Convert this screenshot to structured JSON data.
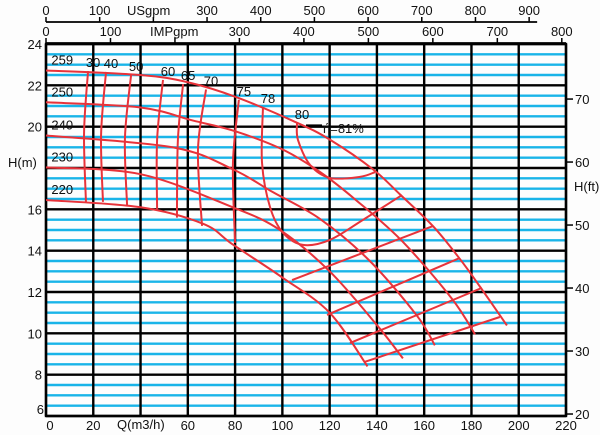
{
  "chart_data": {
    "type": "line",
    "title": "",
    "xlabel": "Q(m3/h)",
    "ylabel": "H(m)",
    "ylabel_right": "H(ft)",
    "xlim": [
      0,
      220
    ],
    "ylim": [
      6,
      24
    ],
    "grid": true,
    "x_tick_labels": [
      "0",
      "20",
      "",
      "60",
      "80",
      "100",
      "120",
      "140",
      "160",
      "180",
      "200",
      "220"
    ],
    "y_tick_labels": [
      "6",
      "8",
      "10",
      "12",
      "14",
      "16",
      "",
      "20",
      "22",
      "24"
    ],
    "right_axis_ticks_ft": [
      20,
      30,
      40,
      50,
      60,
      70
    ],
    "top_axes": [
      {
        "label": "USgpm",
        "per_m3h": 4.403,
        "ticks": [
          0,
          100,
          200,
          300,
          400,
          500,
          600,
          700,
          800,
          900
        ],
        "tick_labels": [
          "0",
          "100",
          "",
          "300",
          "400",
          "500",
          "600",
          "700",
          "800",
          "900"
        ]
      },
      {
        "label": "IMPgpm",
        "per_m3h": 3.666,
        "ticks": [
          0,
          100,
          200,
          300,
          400,
          500,
          600,
          700,
          800
        ],
        "tick_labels": [
          "0",
          "100",
          "",
          "300",
          "400",
          "500",
          "600",
          "700",
          "800"
        ]
      }
    ],
    "series": [
      {
        "name": "259",
        "points": [
          [
            0,
            22.72
          ],
          [
            40,
            22.5
          ],
          [
            60,
            22.15
          ],
          [
            80,
            21.45
          ],
          [
            106,
            20.2
          ],
          [
            120,
            19.38
          ],
          [
            138.3,
            17.94
          ],
          [
            149.7,
            16.73
          ],
          [
            163.7,
            15.19
          ],
          [
            175.1,
            13.6
          ],
          [
            183.6,
            12.26
          ],
          [
            195,
            10.38
          ]
        ]
      },
      {
        "name": "250",
        "points": [
          [
            0,
            21.18
          ],
          [
            40,
            20.93
          ],
          [
            62,
            20.3
          ],
          [
            80,
            19.78
          ],
          [
            100,
            18.9
          ],
          [
            116,
            17.8
          ],
          [
            130.7,
            16.49
          ],
          [
            150.6,
            14.47
          ],
          [
            171.7,
            11.68
          ],
          [
            181.5,
            9.95
          ]
        ]
      },
      {
        "name": "240",
        "points": [
          [
            0,
            19.57
          ],
          [
            53.7,
            19.0
          ],
          [
            79,
            17.94
          ],
          [
            96,
            16.83
          ],
          [
            116,
            15.53
          ],
          [
            137,
            13.5
          ],
          [
            156.9,
            10.86
          ],
          [
            164.5,
            9.42
          ]
        ]
      },
      {
        "name": "230",
        "points": [
          [
            0,
            18.03
          ],
          [
            40,
            17.7
          ],
          [
            79,
            16.1
          ],
          [
            99,
            15.0
          ],
          [
            120,
            13.0
          ],
          [
            140,
            10.4
          ],
          [
            151,
            8.79
          ]
        ]
      },
      {
        "name": "220",
        "points": [
          [
            0,
            16.45
          ],
          [
            40,
            16.1
          ],
          [
            66.5,
            15.3
          ],
          [
            79,
            14.3
          ],
          [
            100,
            12.7
          ],
          [
            120,
            11.0
          ],
          [
            136,
            8.4
          ]
        ]
      }
    ],
    "efficiency_contours": [
      {
        "label": "30",
        "points": [
          [
            17.8,
            22.69
          ],
          [
            16.1,
            19.69
          ],
          [
            16.9,
            16.36
          ]
        ]
      },
      {
        "label": "40",
        "points": [
          [
            25.4,
            22.65
          ],
          [
            23.3,
            19.6
          ],
          [
            24.1,
            16.36
          ]
        ]
      },
      {
        "label": "50",
        "points": [
          [
            36,
            22.5
          ],
          [
            33.4,
            19.45
          ],
          [
            34.3,
            16.2
          ]
        ]
      },
      {
        "label": "60",
        "points": [
          [
            49.5,
            22.26
          ],
          [
            47,
            19.36
          ],
          [
            47,
            16.0
          ]
        ],
        "right_branch": [
          [
            134.9,
            8.62
          ],
          [
            192,
            10.79
          ]
        ]
      },
      {
        "label": "65",
        "points": [
          [
            58,
            22.06
          ],
          [
            55.8,
            19.36
          ],
          [
            55.4,
            15.6
          ]
        ],
        "right_branch": [
          [
            128.6,
            9.53
          ],
          [
            184.4,
            12.2
          ]
        ]
      },
      {
        "label": "70",
        "points": [
          [
            67.7,
            21.8
          ],
          [
            64.3,
            18.9
          ],
          [
            66,
            15.2
          ]
        ],
        "right_branch": [
          [
            118.9,
            10.89
          ],
          [
            175.1,
            13.65
          ]
        ]
      },
      {
        "label": "75",
        "points": [
          [
            81.6,
            21.3
          ],
          [
            79.1,
            18.24
          ],
          [
            80,
            14.37
          ]
        ],
        "right_branch": [
          [
            104.1,
            12.58
          ],
          [
            163.7,
            15.19
          ]
        ]
      },
      {
        "label": "78",
        "points": [
          [
            91.8,
            20.95
          ],
          [
            91.4,
            18.24
          ],
          [
            94.8,
            16.1
          ],
          [
            100.3,
            14.86
          ],
          [
            108.7,
            14.28
          ],
          [
            120.1,
            14.52
          ],
          [
            134.1,
            15.49
          ],
          [
            150.6,
            16.69
          ]
        ]
      },
      {
        "label": "80",
        "points": [
          [
            106.2,
            20.18
          ],
          [
            106.6,
            19.36
          ],
          [
            111.7,
            18.15
          ],
          [
            120.1,
            17.52
          ],
          [
            132.8,
            17.57
          ],
          [
            139.2,
            17.8
          ]
        ]
      }
    ],
    "best_efficiency_label": "ή=81%",
    "colors": {
      "curves": "#e8333a",
      "major_grid": "#000000",
      "minor_grid": "#19b4e8",
      "background": "#fdfdfd"
    }
  }
}
